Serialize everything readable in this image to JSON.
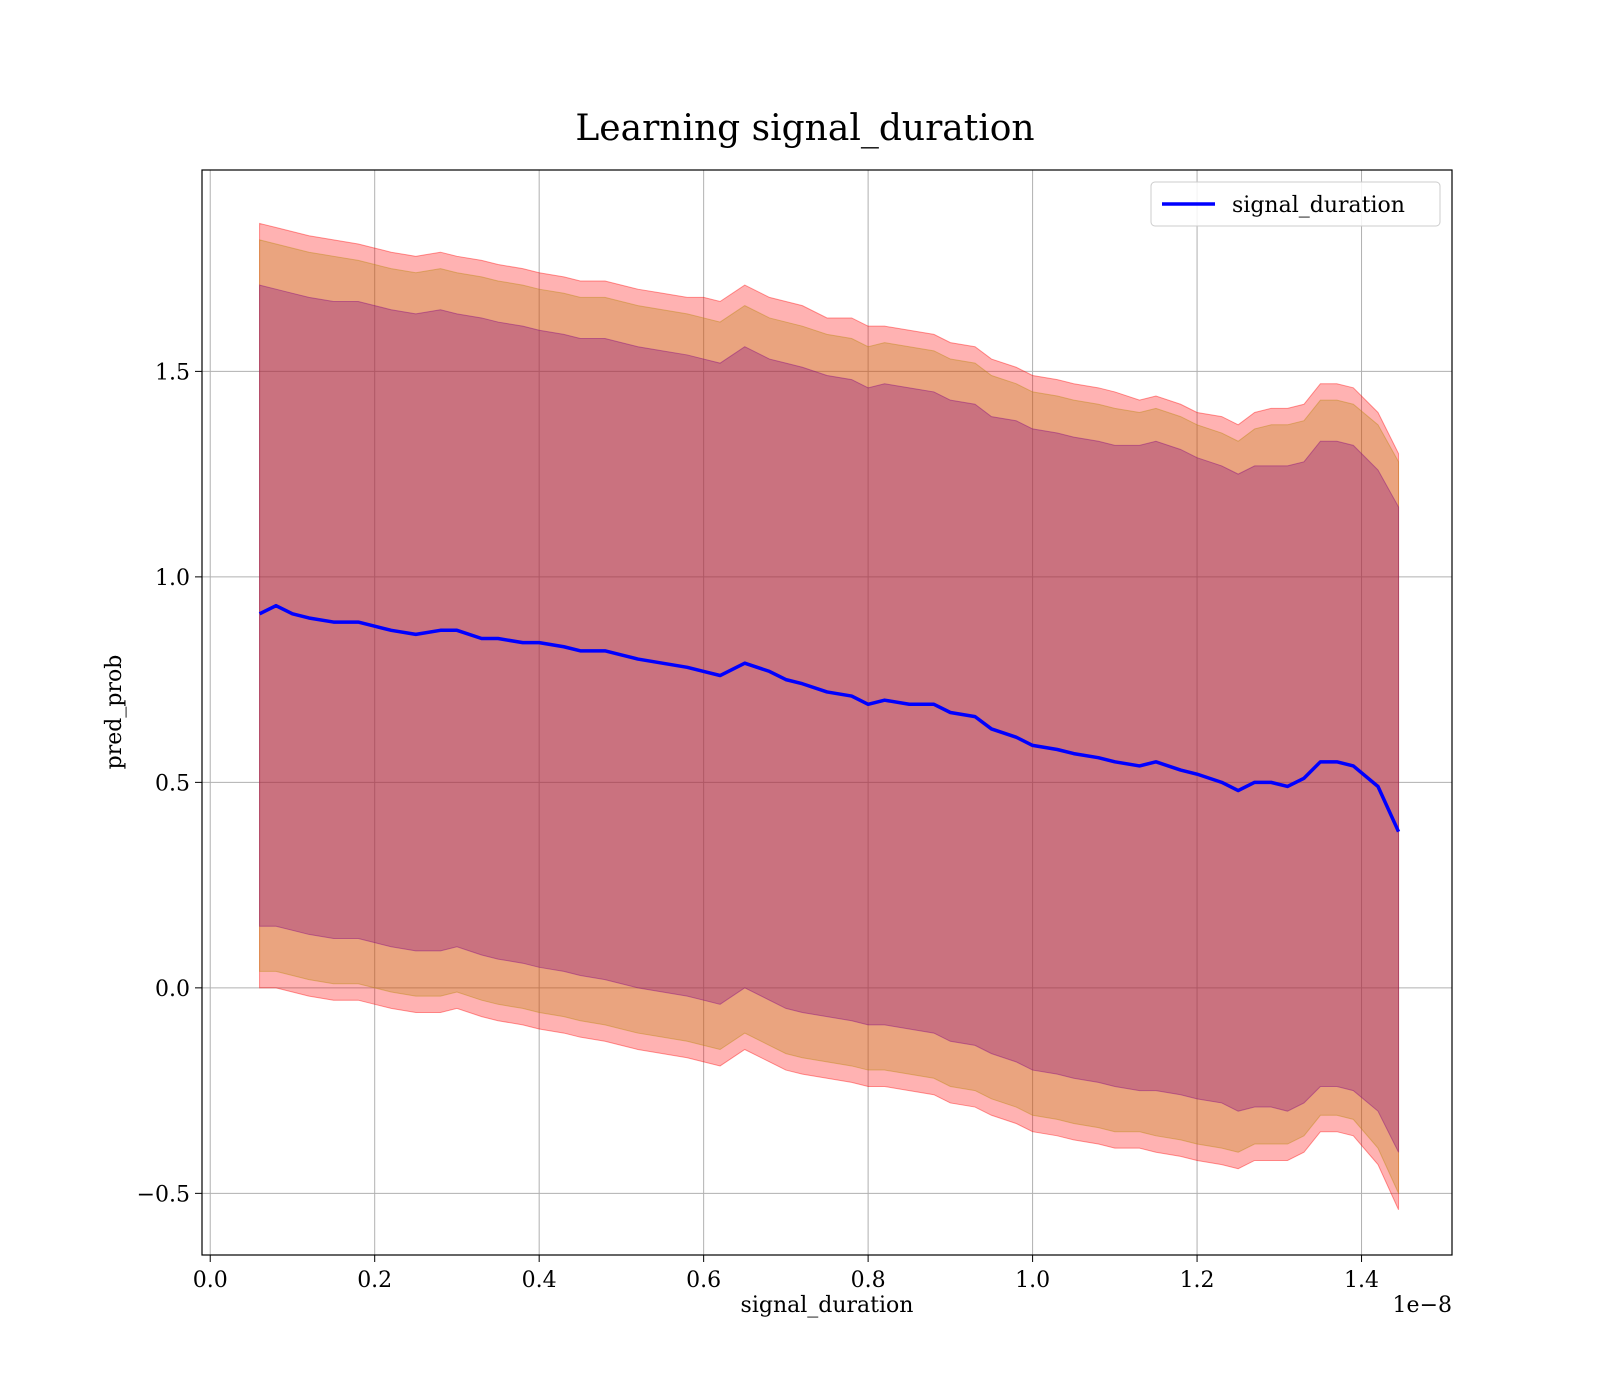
{
  "chart_data": {
    "type": "line",
    "title": "Learning signal_duration",
    "xlabel": "signal_duration",
    "ylabel": "pred_prob",
    "x_offset_label": "1e−8",
    "xlim": [
      -0.01,
      1.51
    ],
    "ylim": [
      -0.65,
      1.99
    ],
    "grid": true,
    "legend_position": "top-right",
    "x_ticks": [
      0.0,
      0.2,
      0.4,
      0.6,
      0.8,
      1.0,
      1.2,
      1.4
    ],
    "x_tick_labels": [
      "0.0",
      "0.2",
      "0.4",
      "0.6",
      "0.8",
      "1.0",
      "1.2",
      "1.4"
    ],
    "y_ticks": [
      -0.5,
      0.0,
      0.5,
      1.0,
      1.5
    ],
    "y_tick_labels": [
      "−0.5",
      "0.0",
      "0.5",
      "1.0",
      "1.5"
    ],
    "colors": {
      "line": "#0000ff",
      "outer_band": "#ff0000",
      "middle_band": "#b8860b",
      "inner_band": "#800080"
    },
    "series": [
      {
        "name": "signal_duration",
        "x": [
          0.06,
          0.08,
          0.1,
          0.12,
          0.15,
          0.18,
          0.2,
          0.22,
          0.25,
          0.28,
          0.3,
          0.33,
          0.35,
          0.38,
          0.4,
          0.43,
          0.45,
          0.48,
          0.5,
          0.52,
          0.55,
          0.58,
          0.6,
          0.62,
          0.65,
          0.68,
          0.7,
          0.72,
          0.75,
          0.78,
          0.8,
          0.82,
          0.85,
          0.88,
          0.9,
          0.93,
          0.95,
          0.98,
          1.0,
          1.03,
          1.05,
          1.08,
          1.1,
          1.13,
          1.15,
          1.18,
          1.2,
          1.23,
          1.25,
          1.27,
          1.29,
          1.31,
          1.33,
          1.35,
          1.37,
          1.39,
          1.42,
          1.445
        ],
        "y": [
          0.91,
          0.93,
          0.91,
          0.9,
          0.89,
          0.89,
          0.88,
          0.87,
          0.86,
          0.87,
          0.87,
          0.85,
          0.85,
          0.84,
          0.84,
          0.83,
          0.82,
          0.82,
          0.81,
          0.8,
          0.79,
          0.78,
          0.77,
          0.76,
          0.79,
          0.77,
          0.75,
          0.74,
          0.72,
          0.71,
          0.69,
          0.7,
          0.69,
          0.69,
          0.67,
          0.66,
          0.63,
          0.61,
          0.59,
          0.58,
          0.57,
          0.56,
          0.55,
          0.54,
          0.55,
          0.53,
          0.52,
          0.5,
          0.48,
          0.5,
          0.5,
          0.49,
          0.51,
          0.55,
          0.55,
          0.54,
          0.49,
          0.38
        ]
      }
    ],
    "bands": [
      {
        "name": "outer",
        "upper": [
          1.86,
          1.85,
          1.84,
          1.83,
          1.82,
          1.81,
          1.8,
          1.79,
          1.78,
          1.79,
          1.78,
          1.77,
          1.76,
          1.75,
          1.74,
          1.73,
          1.72,
          1.72,
          1.71,
          1.7,
          1.69,
          1.68,
          1.68,
          1.67,
          1.71,
          1.68,
          1.67,
          1.66,
          1.63,
          1.63,
          1.61,
          1.61,
          1.6,
          1.59,
          1.57,
          1.56,
          1.53,
          1.51,
          1.49,
          1.48,
          1.47,
          1.46,
          1.45,
          1.43,
          1.44,
          1.42,
          1.4,
          1.39,
          1.37,
          1.4,
          1.41,
          1.41,
          1.42,
          1.47,
          1.47,
          1.46,
          1.4,
          1.3
        ],
        "lower": [
          0.0,
          0.0,
          -0.01,
          -0.02,
          -0.03,
          -0.03,
          -0.04,
          -0.05,
          -0.06,
          -0.06,
          -0.05,
          -0.07,
          -0.08,
          -0.09,
          -0.1,
          -0.11,
          -0.12,
          -0.13,
          -0.14,
          -0.15,
          -0.16,
          -0.17,
          -0.18,
          -0.19,
          -0.15,
          -0.18,
          -0.2,
          -0.21,
          -0.22,
          -0.23,
          -0.24,
          -0.24,
          -0.25,
          -0.26,
          -0.28,
          -0.29,
          -0.31,
          -0.33,
          -0.35,
          -0.36,
          -0.37,
          -0.38,
          -0.39,
          -0.39,
          -0.4,
          -0.41,
          -0.42,
          -0.43,
          -0.44,
          -0.42,
          -0.42,
          -0.42,
          -0.4,
          -0.35,
          -0.35,
          -0.36,
          -0.43,
          -0.54
        ]
      },
      {
        "name": "middle",
        "upper": [
          1.82,
          1.81,
          1.8,
          1.79,
          1.78,
          1.77,
          1.76,
          1.75,
          1.74,
          1.75,
          1.74,
          1.73,
          1.72,
          1.71,
          1.7,
          1.69,
          1.68,
          1.68,
          1.67,
          1.66,
          1.65,
          1.64,
          1.63,
          1.62,
          1.66,
          1.63,
          1.62,
          1.61,
          1.59,
          1.58,
          1.56,
          1.57,
          1.56,
          1.55,
          1.53,
          1.52,
          1.49,
          1.47,
          1.45,
          1.44,
          1.43,
          1.42,
          1.41,
          1.4,
          1.41,
          1.39,
          1.37,
          1.35,
          1.33,
          1.36,
          1.37,
          1.37,
          1.38,
          1.43,
          1.43,
          1.42,
          1.37,
          1.28
        ],
        "lower": [
          0.04,
          0.04,
          0.03,
          0.02,
          0.01,
          0.01,
          0.0,
          -0.01,
          -0.02,
          -0.02,
          -0.01,
          -0.03,
          -0.04,
          -0.05,
          -0.06,
          -0.07,
          -0.08,
          -0.09,
          -0.1,
          -0.11,
          -0.12,
          -0.13,
          -0.14,
          -0.15,
          -0.11,
          -0.14,
          -0.16,
          -0.17,
          -0.18,
          -0.19,
          -0.2,
          -0.2,
          -0.21,
          -0.22,
          -0.24,
          -0.25,
          -0.27,
          -0.29,
          -0.31,
          -0.32,
          -0.33,
          -0.34,
          -0.35,
          -0.35,
          -0.36,
          -0.37,
          -0.38,
          -0.39,
          -0.4,
          -0.38,
          -0.38,
          -0.38,
          -0.36,
          -0.31,
          -0.31,
          -0.32,
          -0.39,
          -0.5
        ]
      },
      {
        "name": "inner",
        "upper": [
          1.71,
          1.7,
          1.69,
          1.68,
          1.67,
          1.67,
          1.66,
          1.65,
          1.64,
          1.65,
          1.64,
          1.63,
          1.62,
          1.61,
          1.6,
          1.59,
          1.58,
          1.58,
          1.57,
          1.56,
          1.55,
          1.54,
          1.53,
          1.52,
          1.56,
          1.53,
          1.52,
          1.51,
          1.49,
          1.48,
          1.46,
          1.47,
          1.46,
          1.45,
          1.43,
          1.42,
          1.39,
          1.38,
          1.36,
          1.35,
          1.34,
          1.33,
          1.32,
          1.32,
          1.33,
          1.31,
          1.29,
          1.27,
          1.25,
          1.27,
          1.27,
          1.27,
          1.28,
          1.33,
          1.33,
          1.32,
          1.26,
          1.17
        ],
        "lower": [
          0.15,
          0.15,
          0.14,
          0.13,
          0.12,
          0.12,
          0.11,
          0.1,
          0.09,
          0.09,
          0.1,
          0.08,
          0.07,
          0.06,
          0.05,
          0.04,
          0.03,
          0.02,
          0.01,
          0.0,
          -0.01,
          -0.02,
          -0.03,
          -0.04,
          0.0,
          -0.03,
          -0.05,
          -0.06,
          -0.07,
          -0.08,
          -0.09,
          -0.09,
          -0.1,
          -0.11,
          -0.13,
          -0.14,
          -0.16,
          -0.18,
          -0.2,
          -0.21,
          -0.22,
          -0.23,
          -0.24,
          -0.25,
          -0.25,
          -0.26,
          -0.27,
          -0.28,
          -0.3,
          -0.29,
          -0.29,
          -0.3,
          -0.28,
          -0.24,
          -0.24,
          -0.25,
          -0.3,
          -0.4
        ]
      }
    ]
  }
}
